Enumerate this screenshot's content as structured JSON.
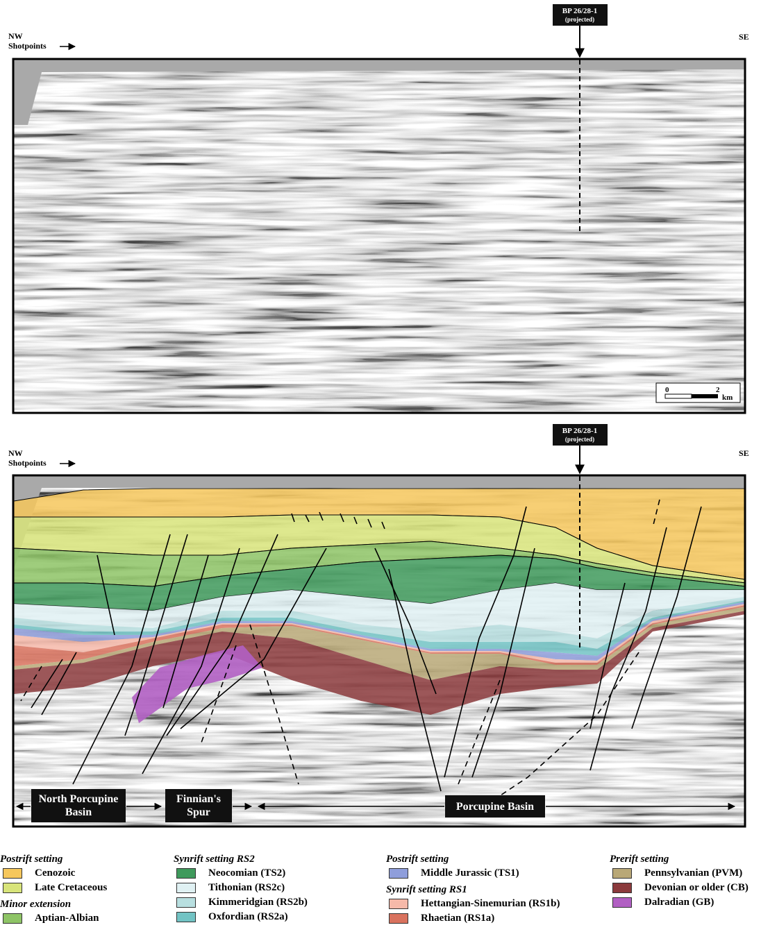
{
  "panels": [
    {
      "nw": "NW",
      "shotpoints": "Shotpoints",
      "se": "SE",
      "well": "BP 26/28-1",
      "well_note": "(projected)",
      "scale": {
        "zero": "0",
        "two": "2",
        "unit": "km"
      }
    },
    {
      "nw": "NW",
      "shotpoints": "Shotpoints",
      "se": "SE",
      "well": "BP 26/28-1",
      "well_note": "(projected)",
      "regions": [
        "North Porcupine Basin",
        "Finnian's Spur",
        "Porcupine Basin"
      ]
    }
  ],
  "legend": [
    {
      "groups": [
        {
          "heading": "Postrift setting",
          "items": [
            {
              "label": "Cenozoic",
              "color": "#f6c75c"
            },
            {
              "label": "Late Cretaceous",
              "color": "#d8e47a"
            }
          ]
        },
        {
          "heading": "Minor extension",
          "items": [
            {
              "label": "Aptian-Albian",
              "color": "#8ec466"
            }
          ]
        }
      ]
    },
    {
      "groups": [
        {
          "heading": "Synrift setting RS2",
          "items": [
            {
              "label": "Neocomian (TS2)",
              "color": "#3f9a5c"
            },
            {
              "label": "Tithonian (RS2c)",
              "color": "#e0f1f3"
            },
            {
              "label": "Kimmeridgian  (RS2b)",
              "color": "#b8dfe0"
            },
            {
              "label": "Oxfordian (RS2a)",
              "color": "#72c3c4"
            }
          ]
        }
      ]
    },
    {
      "groups": [
        {
          "heading": "Postrift setting",
          "items": [
            {
              "label": "Middle Jurassic (TS1)",
              "color": "#8f9edb"
            }
          ]
        },
        {
          "heading": "Synrift setting RS1",
          "items": [
            {
              "label": "Hettangian-Sinemurian (RS1b)",
              "color": "#f6b9a9"
            },
            {
              "label": "Rhaetian (RS1a)",
              "color": "#d9725e"
            }
          ]
        }
      ]
    },
    {
      "groups": [
        {
          "heading": "Prerift setting",
          "items": [
            {
              "label": "Pennsylvanian (PVM)",
              "color": "#b9a877"
            },
            {
              "label": "Devonian or older (CB)",
              "color": "#8b3a3c"
            },
            {
              "label": "Dalradian (GB)",
              "color": "#b15fc3"
            }
          ]
        }
      ]
    }
  ]
}
